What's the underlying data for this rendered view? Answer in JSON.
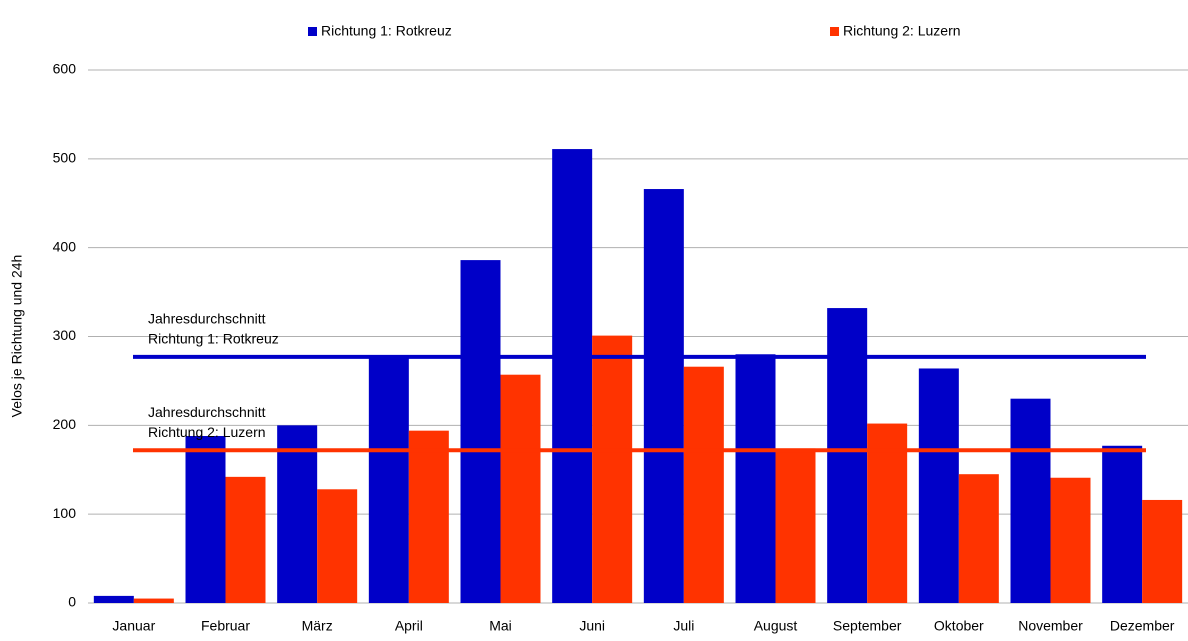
{
  "chart_data": {
    "type": "bar",
    "y_label": "Velos je Richtung und 24h",
    "categories": [
      "Januar",
      "Februar",
      "März",
      "April",
      "Mai",
      "Juni",
      "Juli",
      "August",
      "September",
      "Oktober",
      "November",
      "Dezember"
    ],
    "series": [
      {
        "name": "Richtung 1: Rotkreuz",
        "color": "#0000c8",
        "values": [
          8,
          188,
          200,
          278,
          386,
          511,
          466,
          280,
          332,
          264,
          230,
          177
        ]
      },
      {
        "name": "Richtung 2: Luzern",
        "color": "#ff3300",
        "values": [
          5,
          142,
          128,
          194,
          257,
          301,
          266,
          174,
          202,
          145,
          141,
          116
        ]
      }
    ],
    "reference_lines": [
      {
        "label": [
          "Jahresdurchschnitt",
          "Richtung 1: Rotkreuz"
        ],
        "value": 277,
        "color": "#0000c8"
      },
      {
        "label": [
          "Jahresdurchschnitt",
          "Richtung 2: Luzern"
        ],
        "value": 172,
        "color": "#ff3300"
      }
    ],
    "ylim": [
      0,
      600
    ],
    "yticks": [
      0,
      100,
      200,
      300,
      400,
      500,
      600
    ],
    "grid": true
  }
}
